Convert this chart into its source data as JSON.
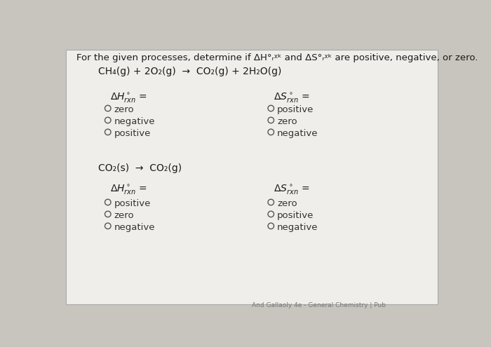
{
  "bg_color": "#c8c4be",
  "card_color": "#f0eeeb",
  "title_text": "For the given processes, determine if ΔH°",
  "title_text2": "rxn",
  "title_text3": " and ΔS°",
  "title_text4": "rxn",
  "title_text5": " are positive, negative, or zero.",
  "reaction1_parts": [
    "CH₄(g) + 2O₂(g) → CO₂(g) + 2H₂O(g)"
  ],
  "reaction2_parts": [
    "CO₂(s) → CO₂(g)"
  ],
  "rxn1_dH_options": [
    "zero",
    "negative",
    "positive"
  ],
  "rxn1_dS_options": [
    "positive",
    "zero",
    "negative"
  ],
  "rxn2_dH_options": [
    "positive",
    "zero",
    "negative"
  ],
  "rxn2_dS_options": [
    "zero",
    "positive",
    "negative"
  ],
  "footer": "And Gallaoly 4e - General Chemistry | Pub",
  "text_color": "#2a2a2a",
  "circle_color": "#555555",
  "option_color": "#333333"
}
